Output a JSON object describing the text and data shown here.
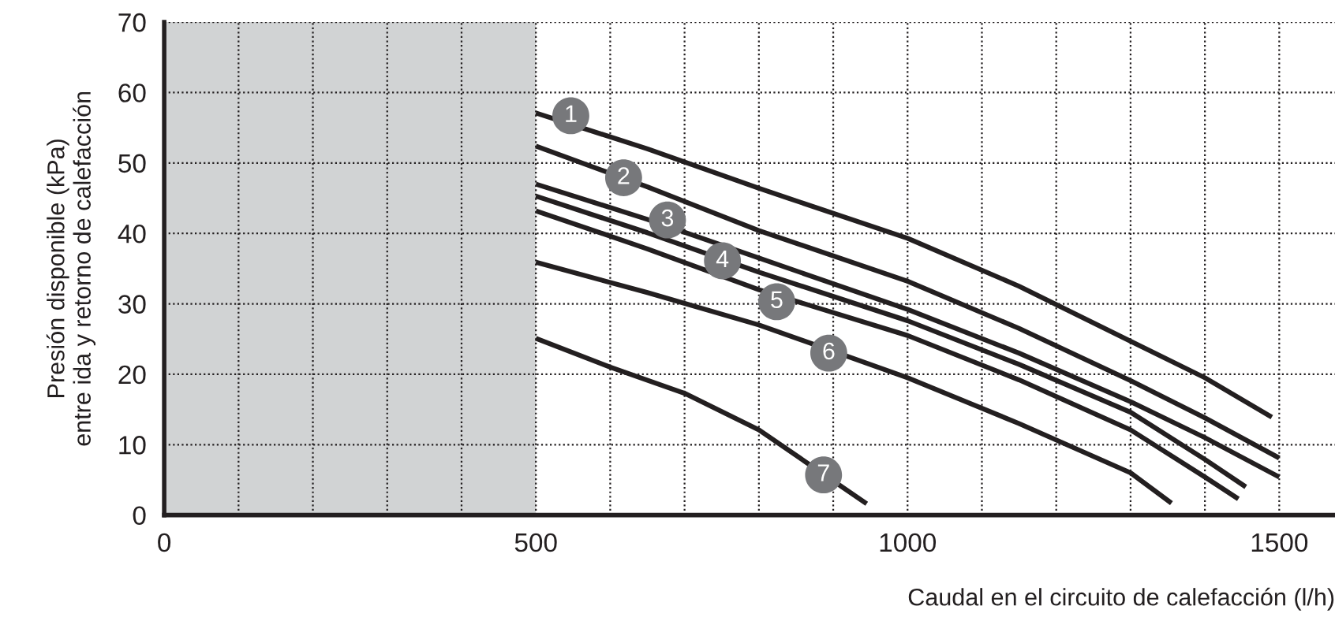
{
  "chart_data": {
    "type": "line",
    "xlabel": "Caudal en el circuito de calefacción (l/h)",
    "ylabel": "Presión disponible (kPa)\nentre ida y retorno de calefacción",
    "xlim": [
      0,
      1575
    ],
    "ylim": [
      0,
      70
    ],
    "xticks": [
      0,
      {
        "value": 100,
        "label": null
      },
      {
        "value": 200,
        "label": null
      },
      {
        "value": 300,
        "label": null
      },
      {
        "value": 400,
        "label": null
      },
      500,
      {
        "value": 600,
        "label": null
      },
      {
        "value": 700,
        "label": null
      },
      {
        "value": 800,
        "label": null
      },
      {
        "value": 900,
        "label": null
      },
      1000,
      {
        "value": 1100,
        "label": null
      },
      {
        "value": 1200,
        "label": null
      },
      {
        "value": 1300,
        "label": null
      },
      {
        "value": 1400,
        "label": null
      },
      1500
    ],
    "yticks": [
      0,
      10,
      20,
      30,
      40,
      50,
      60,
      70
    ],
    "grid": true,
    "line_style": "solid",
    "bands": [
      {
        "axis": "x",
        "from": 0,
        "to": 500,
        "color": "#d1d3d4"
      }
    ],
    "series": [
      {
        "color": "#231f20",
        "x": [
          500,
          650,
          800,
          1000,
          1150,
          1300,
          1400,
          1490
        ],
        "values": [
          57.1,
          52,
          46.4,
          39.3,
          32.5,
          24.7,
          19.5,
          13.9
        ]
      },
      {
        "color": "#231f20",
        "x": [
          500,
          650,
          800,
          1000,
          1150,
          1300,
          1400,
          1500
        ],
        "values": [
          52.4,
          46.6,
          40.4,
          33.2,
          26.5,
          19.1,
          13.8,
          8.1
        ]
      },
      {
        "color": "#231f20",
        "x": [
          500,
          650,
          800,
          1000,
          1150,
          1300,
          1400,
          1500
        ],
        "values": [
          47,
          42,
          36.5,
          29.2,
          23,
          16.1,
          11,
          5.4
        ]
      },
      {
        "color": "#231f20",
        "x": [
          500,
          650,
          800,
          1000,
          1150,
          1300,
          1400,
          1455
        ],
        "values": [
          45.3,
          40.1,
          34.5,
          27.6,
          21.4,
          14.6,
          7.9,
          4
        ]
      },
      {
        "color": "#231f20",
        "x": [
          500,
          650,
          800,
          1000,
          1150,
          1300,
          1400,
          1445
        ],
        "values": [
          43.2,
          37.8,
          32,
          25.5,
          19.2,
          12.1,
          5.4,
          2.3
        ]
      },
      {
        "color": "#231f20",
        "x": [
          500,
          650,
          800,
          1000,
          1150,
          1300,
          1355
        ],
        "values": [
          35.9,
          31.6,
          27,
          19.5,
          13,
          6,
          1.7
        ]
      },
      {
        "color": "#231f20",
        "x": [
          500,
          600,
          700,
          800,
          945
        ],
        "values": [
          25.1,
          21,
          17.3,
          12.1,
          1.6
        ]
      }
    ],
    "annotations": [
      {
        "text": "1",
        "x": 547,
        "y": 56.7
      },
      {
        "text": "2",
        "x": 618,
        "y": 47.9
      },
      {
        "text": "3",
        "x": 677,
        "y": 41.9
      },
      {
        "text": "4",
        "x": 751,
        "y": 36.1
      },
      {
        "text": "5",
        "x": 824,
        "y": 30.3
      },
      {
        "text": "6",
        "x": 894,
        "y": 23
      },
      {
        "text": "7",
        "x": 887,
        "y": 5.7
      }
    ]
  }
}
